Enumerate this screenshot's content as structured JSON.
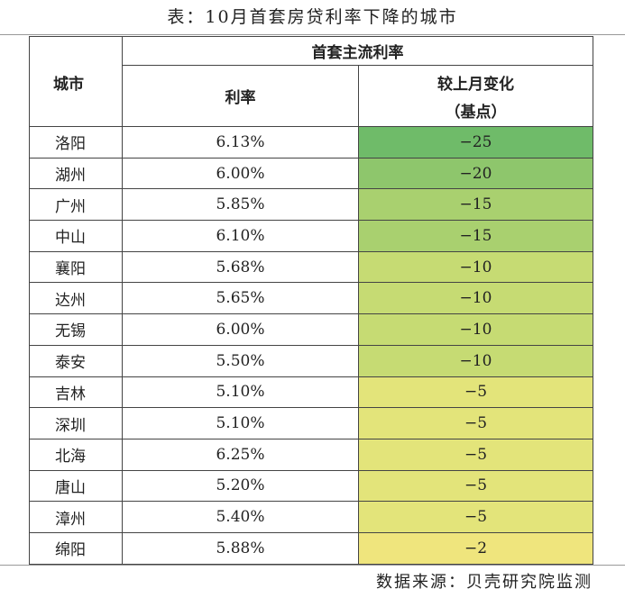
{
  "title": "表：10月首套房贷利率下降的城市",
  "source": "数据来源：贝壳研究院监测",
  "table": {
    "header": {
      "city": "城市",
      "group": "首套主流利率",
      "rate": "利率",
      "change": "较上月变化",
      "change_unit": "（基点）"
    },
    "rows": [
      [
        "洛阳",
        "6.13%",
        "−25"
      ],
      [
        "湖州",
        "6.00%",
        "−20"
      ],
      [
        "广州",
        "5.85%",
        "−15"
      ],
      [
        "中山",
        "6.10%",
        "−15"
      ],
      [
        "襄阳",
        "5.68%",
        "−10"
      ],
      [
        "达州",
        "5.65%",
        "−10"
      ],
      [
        "无锡",
        "6.00%",
        "−10"
      ],
      [
        "泰安",
        "5.50%",
        "−10"
      ],
      [
        "吉林",
        "5.10%",
        "−5"
      ],
      [
        "深圳",
        "5.10%",
        "−5"
      ],
      [
        "北海",
        "6.25%",
        "−5"
      ],
      [
        "唐山",
        "5.20%",
        "−5"
      ],
      [
        "漳州",
        "5.40%",
        "−5"
      ],
      [
        "绵阳",
        "5.88%",
        "−2"
      ]
    ],
    "row_colors": [
      "#6fbb69",
      "#8ec66c",
      "#a9d06f",
      "#a9d06f",
      "#c6db73",
      "#c6db73",
      "#c6db73",
      "#c6db73",
      "#e3e47a",
      "#e3e47a",
      "#e3e47a",
      "#e3e47a",
      "#e3e47a",
      "#efe57d"
    ]
  }
}
